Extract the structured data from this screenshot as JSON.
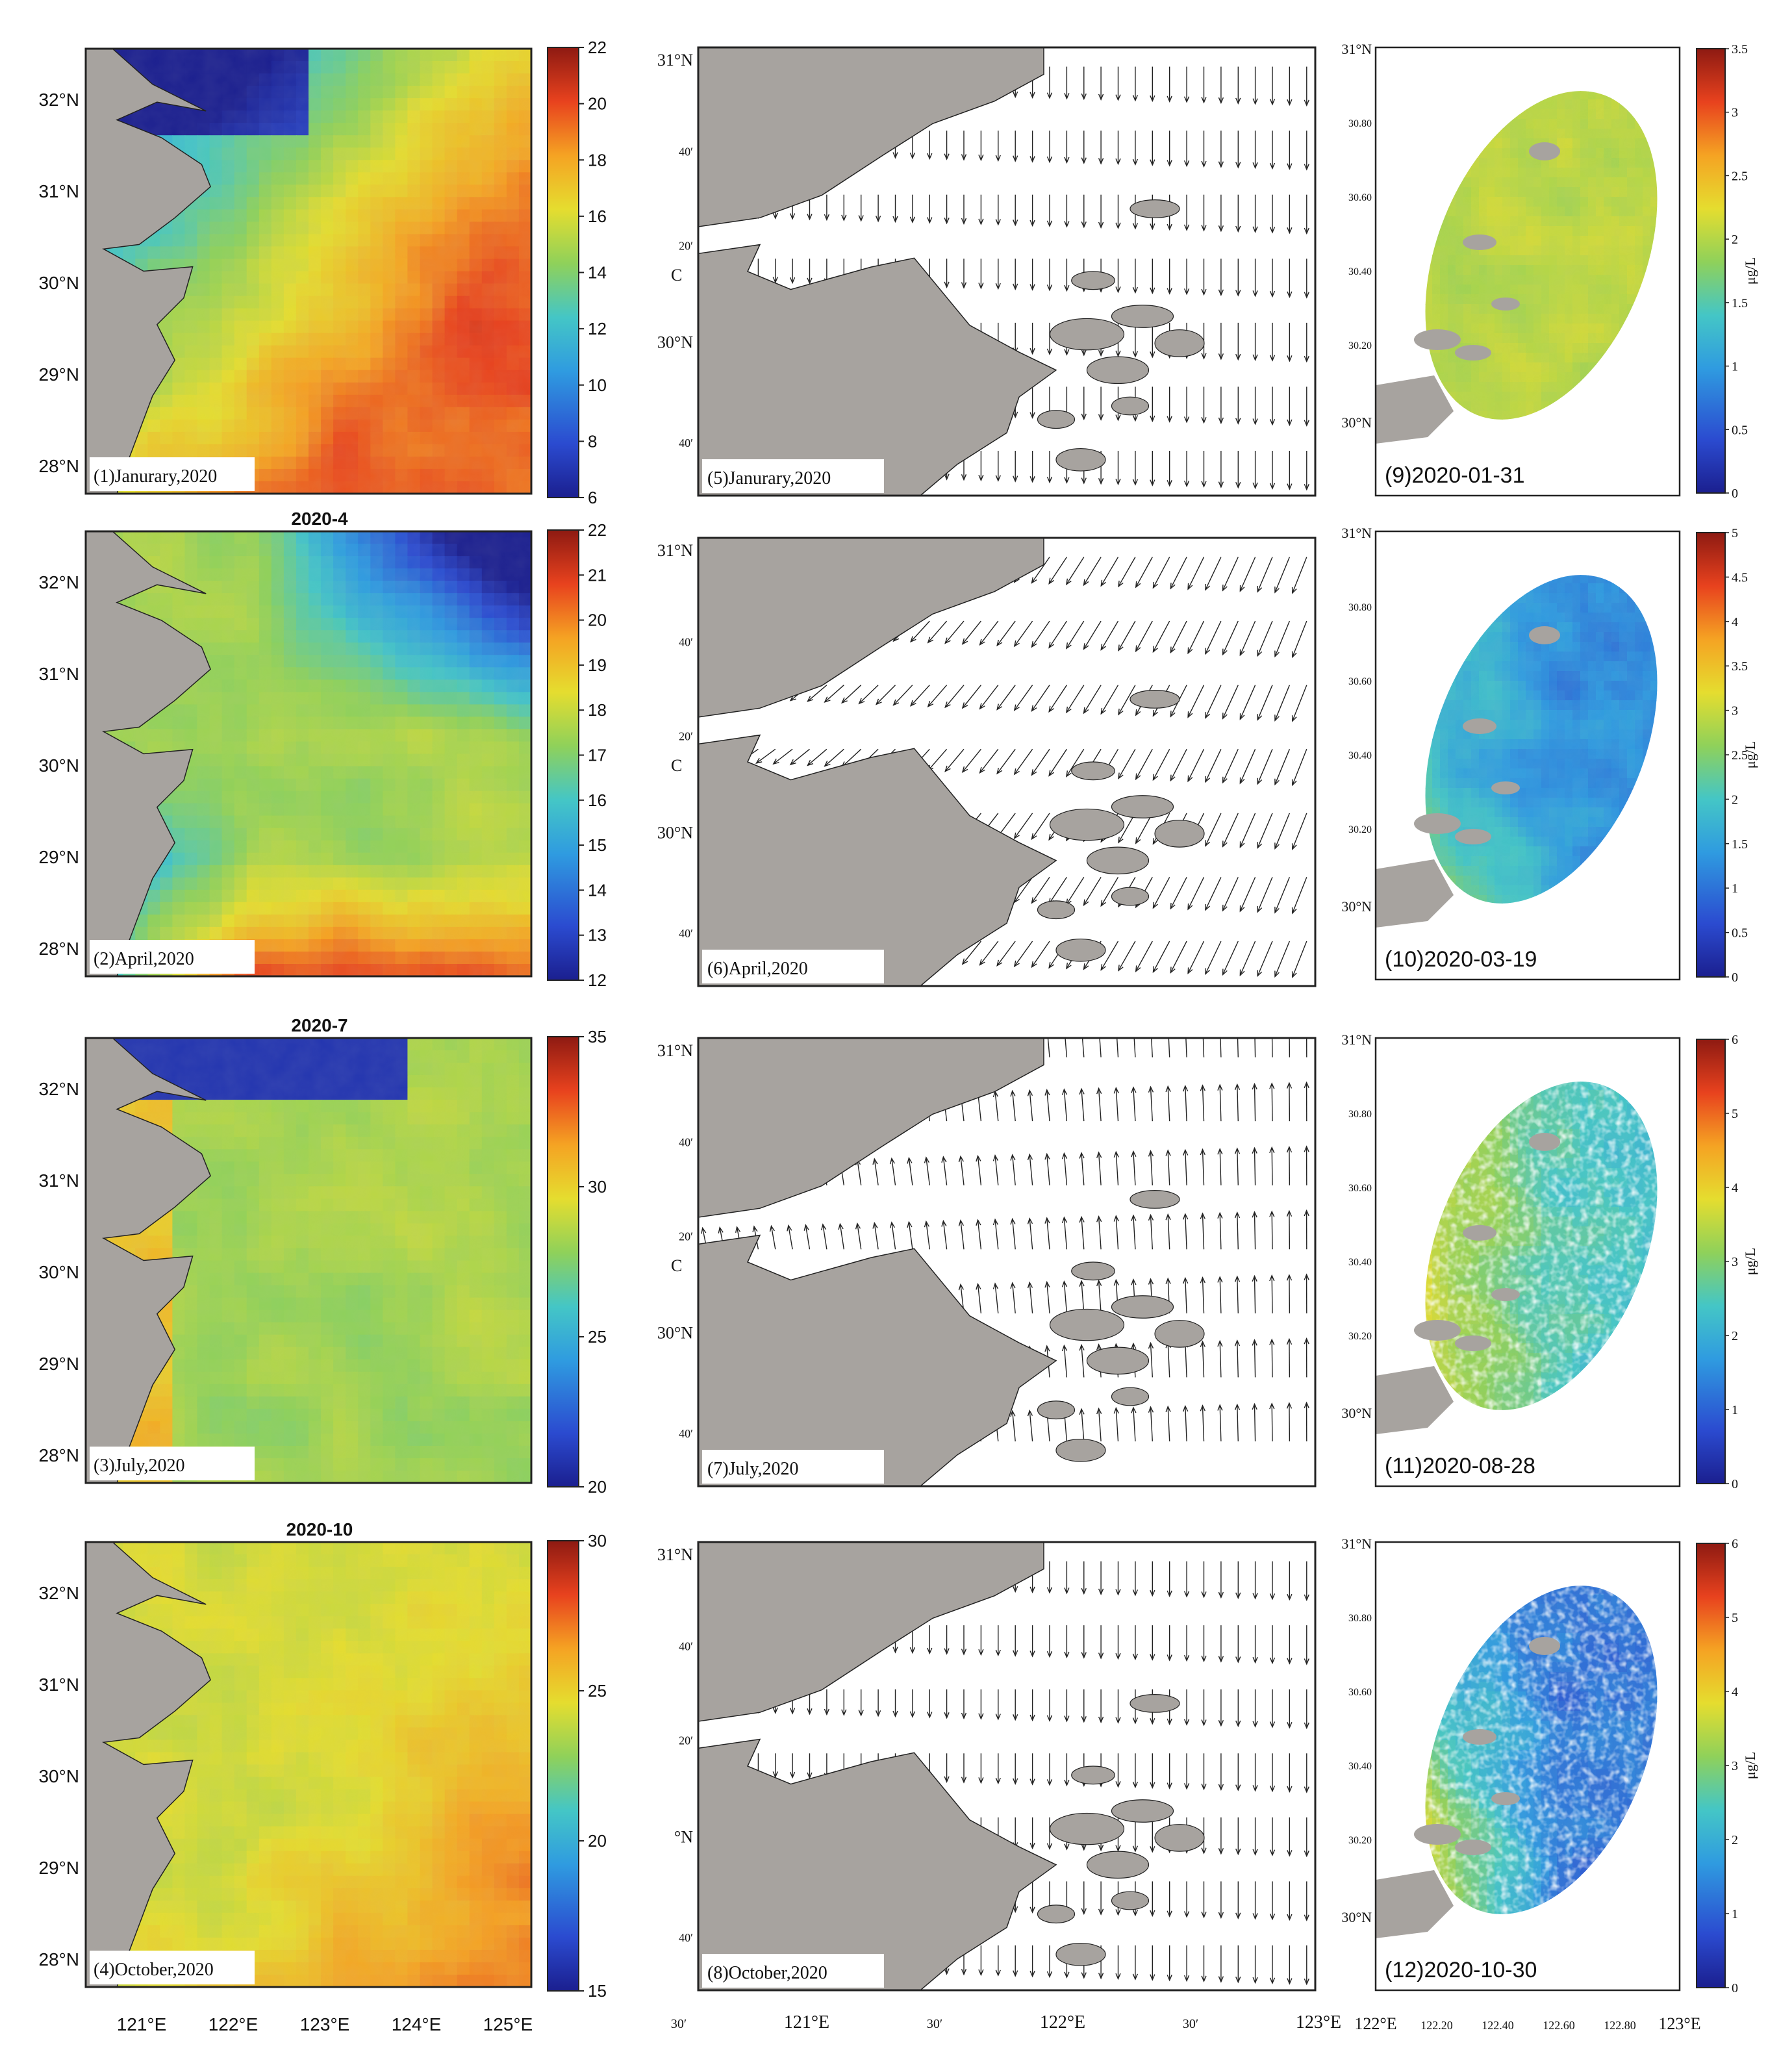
{
  "sst_panels": [
    {
      "title": "",
      "label": "(1)Janurary,2020",
      "cbar_ticks": [
        "22",
        "20",
        "18",
        "16",
        "14",
        "12",
        "10",
        "8",
        "6"
      ],
      "cbar_min": 6,
      "cbar_max": 22,
      "pattern": "jan"
    },
    {
      "title": "2020-4",
      "label": "(2)April,2020",
      "cbar_ticks": [
        "22",
        "21",
        "20",
        "19",
        "18",
        "17",
        "16",
        "15",
        "14",
        "13",
        "12"
      ],
      "cbar_min": 12,
      "cbar_max": 22,
      "pattern": "apr"
    },
    {
      "title": "2020-7",
      "label": "(3)July,2020",
      "cbar_ticks": [
        "35",
        "30",
        "25",
        "20"
      ],
      "cbar_min": 20,
      "cbar_max": 35,
      "pattern": "jul"
    },
    {
      "title": "2020-10",
      "label": "(4)October,2020",
      "cbar_ticks": [
        "30",
        "25",
        "20",
        "15"
      ],
      "cbar_min": 15,
      "cbar_max": 30,
      "pattern": "oct"
    }
  ],
  "sst_lat_ticks": [
    "32°N",
    "31°N",
    "30°N",
    "29°N",
    "28°N"
  ],
  "sst_lon_ticks": [
    "121°E",
    "122°E",
    "123°E",
    "124°E",
    "125°E"
  ],
  "current_panels": [
    {
      "label": "(5)Janurary,2020",
      "lat_ticks": [
        "31°N",
        "40′",
        "20′",
        "30°N",
        "40′"
      ],
      "side_mark": "C",
      "direction": "south"
    },
    {
      "label": "(6)April,2020",
      "lat_ticks": [
        "31°N",
        "40′",
        "20′",
        "30°N",
        "40′"
      ],
      "side_mark": "C",
      "direction": "southwest"
    },
    {
      "label": "(7)July,2020",
      "lat_ticks": [
        "31°N",
        "40′",
        "20′",
        "30°N",
        "40′"
      ],
      "side_mark": "C",
      "direction": "north"
    },
    {
      "label": "(8)October,2020",
      "lat_ticks": [
        "31°N",
        "40′",
        "20′",
        "°N",
        "40′"
      ],
      "side_mark": "",
      "direction": "south"
    }
  ],
  "current_lon_ticks": [
    "30′",
    "121°E",
    "30′",
    "122°E",
    "30′",
    "123°E"
  ],
  "chl_panels": [
    {
      "label": "(9)2020-01-31",
      "cbar_ticks": [
        "3.5",
        "3",
        "2.5",
        "2",
        "1.5",
        "1",
        "0.5",
        "0"
      ],
      "unit": "μg/L",
      "pattern": "uniform"
    },
    {
      "label": "(10)2020-03-19",
      "cbar_ticks": [
        "5",
        "4.5",
        "4",
        "3.5",
        "3",
        "2.5",
        "2",
        "1.5",
        "1",
        "0.5",
        "0"
      ],
      "unit": "μg/L",
      "pattern": "west_high"
    },
    {
      "label": "(11)2020-08-28",
      "cbar_ticks": [
        "6",
        "5",
        "4",
        "3",
        "2",
        "1",
        "0"
      ],
      "unit": "μg/L",
      "pattern": "west_orange"
    },
    {
      "label": "(12)2020-10-30",
      "cbar_ticks": [
        "6",
        "5",
        "4",
        "3",
        "2",
        "1",
        "0"
      ],
      "unit": "μg/L",
      "pattern": "southwest_orange"
    }
  ],
  "chl_lat_ticks": [
    "31°N",
    "30.80",
    "30.60",
    "30.40",
    "30.20",
    "30°N"
  ],
  "chl_lon_ticks": [
    "122°E",
    "122.20",
    "122.40",
    "122.60",
    "122.80",
    "123°E"
  ],
  "colors": {
    "land": "#a7a39f",
    "water": "#ffffff",
    "frame": "#333333"
  }
}
